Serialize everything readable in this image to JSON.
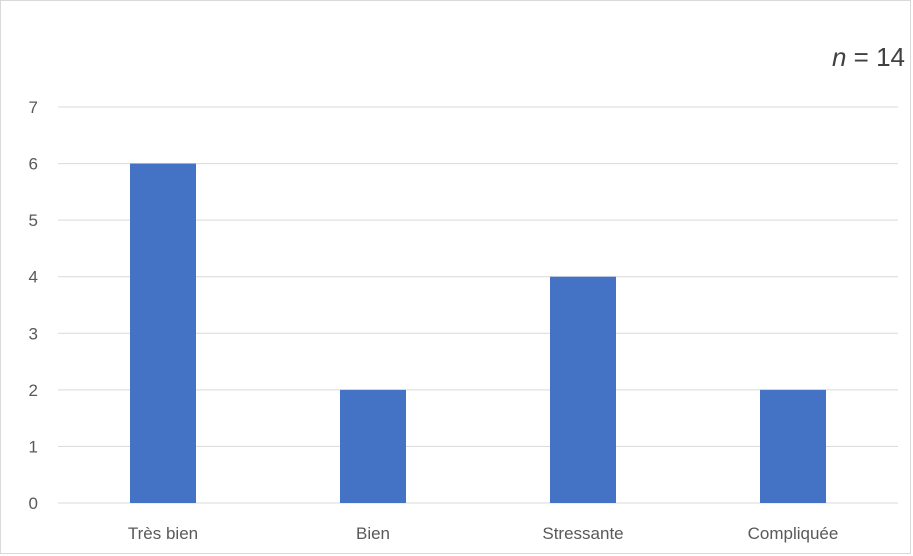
{
  "annotation": {
    "variable": "n",
    "equals": " = ",
    "value": "14"
  },
  "chart_data": {
    "type": "bar",
    "title": "",
    "xlabel": "",
    "ylabel": "",
    "categories": [
      "Très bien",
      "Bien",
      "Stressante",
      "Compliquée"
    ],
    "values": [
      6,
      2,
      4,
      2
    ],
    "ylim": [
      0,
      7
    ],
    "yticks": [
      "0",
      "1",
      "2",
      "3",
      "4",
      "5",
      "6",
      "7"
    ],
    "grid": true,
    "legend": "none",
    "colors": {
      "bar": "#4472C4",
      "grid": "#d9d9d9",
      "axis": "#d9d9d9"
    }
  }
}
